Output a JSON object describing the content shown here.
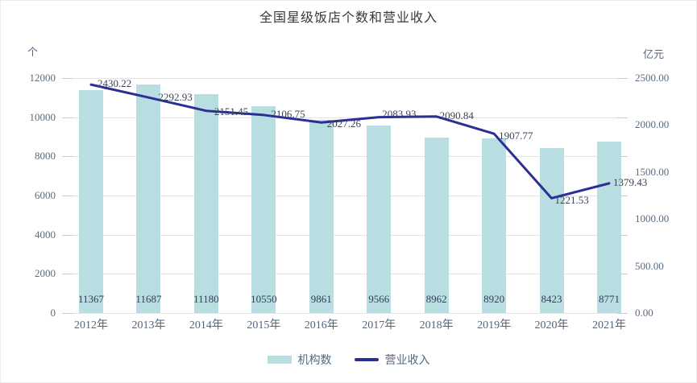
{
  "title": "全国星级饭店个数和营业收入",
  "left_axis": {
    "unit": "个",
    "tick_labels": [
      "0",
      "2000",
      "4000",
      "6000",
      "8000",
      "10000",
      "12000"
    ],
    "min": 0,
    "max": 12000
  },
  "right_axis": {
    "unit": "亿元",
    "tick_labels": [
      "0.00",
      "500.00",
      "1000.00",
      "1500.00",
      "2000.00",
      "2500.00"
    ],
    "min": 0,
    "max": 2500
  },
  "legend": {
    "items": [
      {
        "label": "机构数",
        "swatch": "bar"
      },
      {
        "label": "营业收入",
        "swatch": "line"
      }
    ]
  },
  "colors": {
    "bar_fill": "#b9dee2",
    "line_stroke": "#2b2f94",
    "gridline": "#e4e4e4",
    "tick_dash": "#c8cdd2",
    "axis_text": "#5a6b7c",
    "bar_label_text": "#2f3f58",
    "line_label_text": "#3c4458",
    "title_text": "#383838"
  },
  "chart_data": {
    "type": "combo",
    "title": "全国星级饭店个数和营业收入",
    "categories": [
      "2012年",
      "2013年",
      "2014年",
      "2015年",
      "2016年",
      "2017年",
      "2018年",
      "2019年",
      "2020年",
      "2021年"
    ],
    "series": [
      {
        "name": "机构数",
        "type": "bar",
        "y_axis": "left",
        "unit": "个",
        "values": [
          11367,
          11687,
          11180,
          10550,
          9861,
          9566,
          8962,
          8920,
          8423,
          8771
        ]
      },
      {
        "name": "营业收入",
        "type": "line",
        "y_axis": "right",
        "unit": "亿元",
        "values": [
          2430.22,
          2292.93,
          2151.45,
          2106.75,
          2027.26,
          2083.93,
          2090.84,
          1907.77,
          1221.53,
          1379.43
        ]
      }
    ],
    "left_ylim": [
      0,
      12000
    ],
    "right_ylim": [
      0,
      2500
    ],
    "grid": true,
    "legend_position": "bottom"
  }
}
